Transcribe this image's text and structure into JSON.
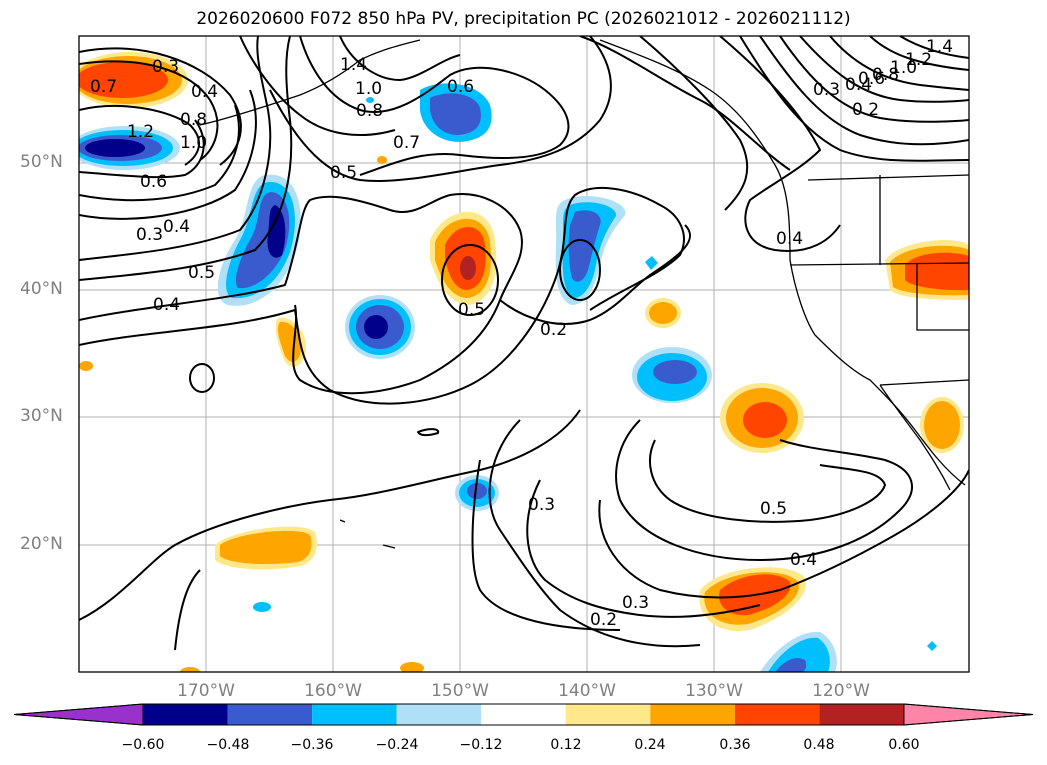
{
  "title": "2026020600 F072 850 hPa PV, precipitation PC (2026021012 - 2026021112)",
  "map": {
    "extent": {
      "lon_min": -180,
      "lon_max": -110,
      "lat_min": 10,
      "lat_max": 60
    },
    "lat_labels": [
      "50°N",
      "40°N",
      "30°N",
      "20°N"
    ],
    "lon_labels": [
      "170°W",
      "160°W",
      "150°W",
      "140°W",
      "130°W",
      "120°W"
    ],
    "contour_labels": [
      "0.3",
      "0.7",
      "0.4",
      "0.8",
      "1.0",
      "1.2",
      "0.6",
      "0.3",
      "0.4",
      "0.5",
      "0.4",
      "1.4",
      "1.0",
      "0.8",
      "0.7",
      "0.5",
      "0.6",
      "0.5",
      "0.2",
      "0.4",
      "0.3",
      "0.2",
      "0.5",
      "0.4",
      "0.3",
      "0.2",
      "1.4",
      "1.2",
      "1.0",
      "0.8",
      "0.6",
      "0.4",
      "0.3"
    ]
  },
  "colorbar": {
    "colors": [
      "#9932cc",
      "#00008b",
      "#3a5bcd",
      "#00bfff",
      "#b0e0f8",
      "#ffffff",
      "#ffe88a",
      "#ffa500",
      "#ff4500",
      "#b22222",
      "#ff85a8"
    ],
    "labels": [
      "−0.60",
      "−0.48",
      "−0.36",
      "−0.24",
      "−0.12",
      "0.12",
      "0.24",
      "0.36",
      "0.48",
      "0.60"
    ]
  }
}
